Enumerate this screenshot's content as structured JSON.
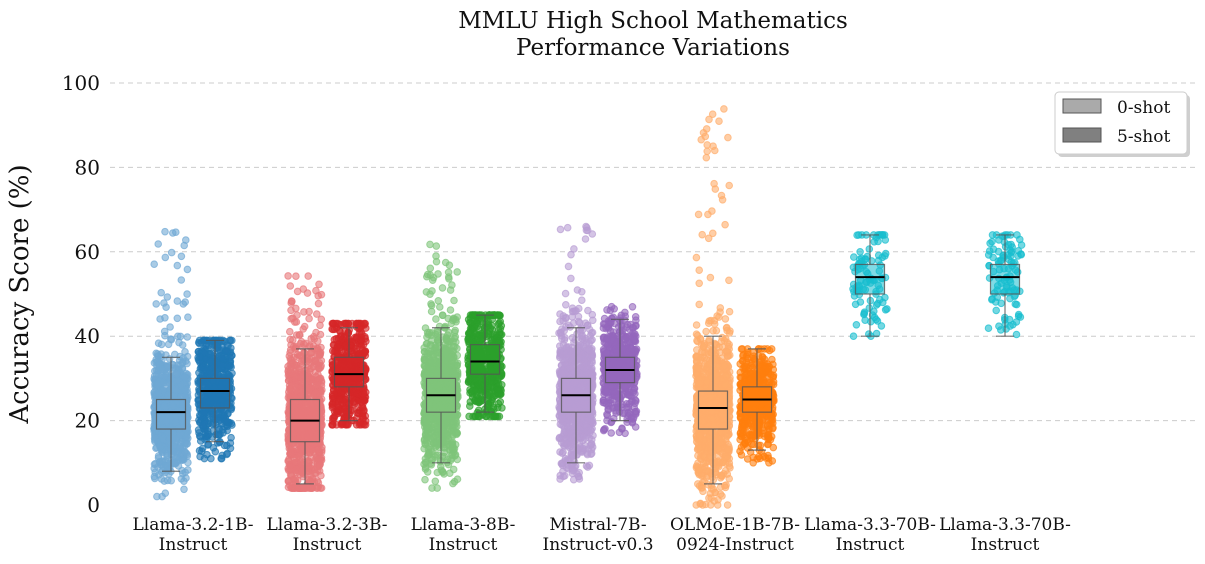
{
  "chart_data": {
    "type": "box-strip",
    "title": [
      "MMLU High School Mathematics",
      "Performance Variations"
    ],
    "ylabel": "Accuracy Score (%)",
    "xlabel": "",
    "ylim": [
      0,
      100
    ],
    "yticks": [
      0,
      20,
      40,
      60,
      80,
      100
    ],
    "grid": "y-dashed",
    "legend": {
      "placement": "top-right",
      "entries": [
        {
          "label": "0-shot",
          "color": "#aaaaaa"
        },
        {
          "label": "5-shot",
          "color": "#808080"
        }
      ]
    },
    "models": [
      {
        "label": [
          "Llama-3.2-1B-",
          "Instruct"
        ],
        "color0": "#6fa8d4",
        "color5": "#1f77b4"
      },
      {
        "label": [
          "Llama-3.2-3B-",
          "Instruct"
        ],
        "color0": "#e8787a",
        "color5": "#d62728"
      },
      {
        "label": [
          "Llama-3-8B-",
          "Instruct"
        ],
        "color0": "#7fc47a",
        "color5": "#2ca02c"
      },
      {
        "label": [
          "Mistral-7B-",
          "Instruct-v0.3"
        ],
        "color0": "#b89cd3",
        "color5": "#9467bd"
      },
      {
        "label": [
          "OLMoE-1B-7B-",
          "0924-Instruct"
        ],
        "color0": "#ffad6b",
        "color5": "#ff7f0e"
      },
      {
        "label": [
          "Llama-3.3-70B-",
          "Instruct"
        ],
        "color0": "#17becf",
        "color5": "#17becf"
      },
      {
        "label": [
          "Llama-3.3-70B-",
          "Instruct"
        ],
        "color0": "#17becf",
        "color5": "#17becf"
      }
    ],
    "boxes": [
      {
        "model": 0,
        "shot": "0-shot",
        "min": 8,
        "q1": 18,
        "median": 22,
        "q3": 25,
        "max": 35,
        "data_min": 2,
        "data_max": 65,
        "n": 900
      },
      {
        "model": 0,
        "shot": "5-shot",
        "min": 15,
        "q1": 23,
        "median": 27,
        "q3": 30,
        "max": 39,
        "data_min": 11,
        "data_max": 39,
        "n": 500
      },
      {
        "model": 1,
        "shot": "0-shot",
        "min": 5,
        "q1": 15,
        "median": 20,
        "q3": 25,
        "max": 37,
        "data_min": 4,
        "data_max": 55,
        "n": 900
      },
      {
        "model": 1,
        "shot": "5-shot",
        "min": 20,
        "q1": 28,
        "median": 31,
        "q3": 35,
        "max": 42,
        "data_min": 19,
        "data_max": 43,
        "n": 500
      },
      {
        "model": 2,
        "shot": "0-shot",
        "min": 10,
        "q1": 22,
        "median": 26,
        "q3": 30,
        "max": 42,
        "data_min": 4,
        "data_max": 65,
        "n": 900
      },
      {
        "model": 2,
        "shot": "5-shot",
        "min": 22,
        "q1": 31,
        "median": 34,
        "q3": 38,
        "max": 45,
        "data_min": 21,
        "data_max": 45,
        "n": 500
      },
      {
        "model": 3,
        "shot": "0-shot",
        "min": 10,
        "q1": 22,
        "median": 26,
        "q3": 30,
        "max": 42,
        "data_min": 6,
        "data_max": 66,
        "n": 900
      },
      {
        "model": 3,
        "shot": "5-shot",
        "min": 20,
        "q1": 29,
        "median": 32,
        "q3": 35,
        "max": 44,
        "data_min": 17,
        "data_max": 47,
        "n": 500
      },
      {
        "model": 4,
        "shot": "0-shot",
        "min": 5,
        "q1": 18,
        "median": 23,
        "q3": 27,
        "max": 40,
        "data_min": 0,
        "data_max": 94,
        "n": 1000
      },
      {
        "model": 4,
        "shot": "5-shot",
        "min": 13,
        "q1": 22,
        "median": 25,
        "q3": 28,
        "max": 37,
        "data_min": 10,
        "data_max": 37,
        "n": 500
      },
      {
        "model": 5,
        "shot": "5-shot",
        "min": 40,
        "q1": 50,
        "median": 54,
        "q3": 57,
        "max": 64,
        "data_min": 40,
        "data_max": 64,
        "n": 100
      },
      {
        "model": 6,
        "shot": "5-shot",
        "min": 40,
        "q1": 50,
        "median": 54,
        "q3": 57,
        "max": 64,
        "data_min": 40,
        "data_max": 64,
        "n": 100
      }
    ]
  }
}
